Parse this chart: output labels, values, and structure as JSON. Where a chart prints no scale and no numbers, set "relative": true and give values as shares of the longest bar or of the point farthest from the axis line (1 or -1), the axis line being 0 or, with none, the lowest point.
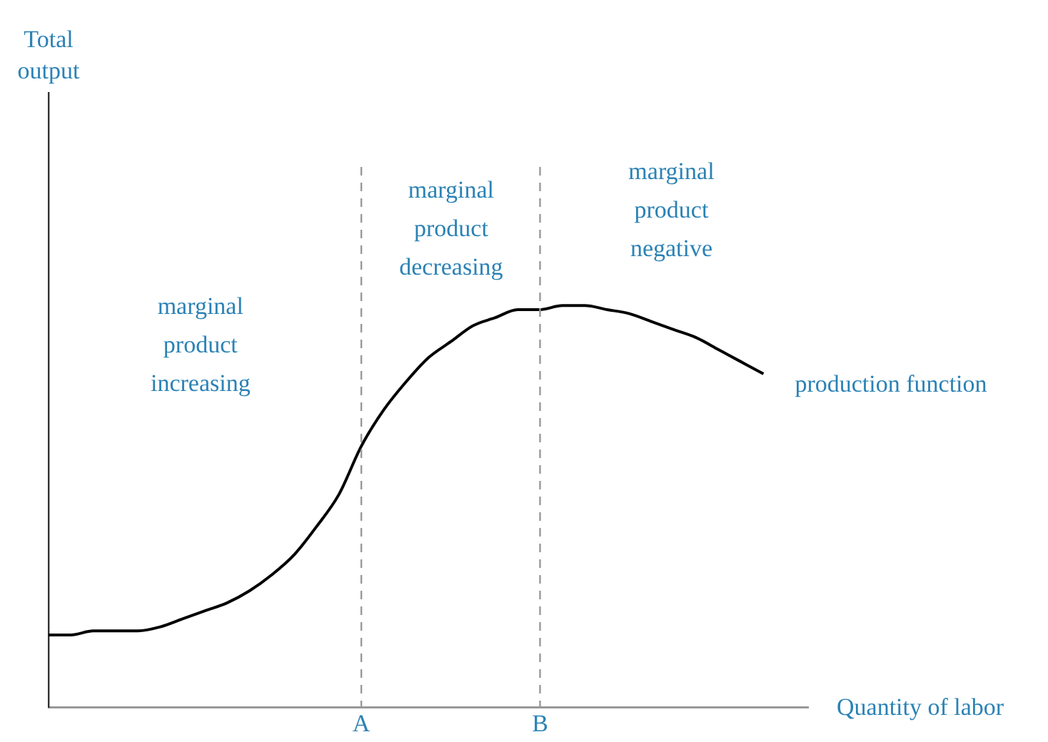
{
  "chart_data": {
    "type": "line",
    "relative": true,
    "xlabel": "Quantity of labor",
    "categories": [
      null,
      null,
      null,
      null,
      null,
      null,
      null,
      null,
      null,
      null,
      null,
      null,
      null,
      null,
      "A",
      null,
      null,
      null,
      null,
      null,
      null,
      null,
      "B",
      null,
      null,
      null,
      null,
      null,
      null,
      null,
      null,
      null,
      null,
      null,
      null
    ],
    "series": [
      {
        "name": "production function",
        "color": "#000000",
        "values": [
          0.18,
          0.18,
          0.19,
          0.19,
          0.19,
          0.2,
          0.22,
          0.24,
          0.26,
          0.29,
          0.33,
          0.38,
          0.45,
          0.53,
          0.65,
          0.74,
          0.81,
          0.87,
          0.91,
          0.95,
          0.97,
          0.99,
          0.99,
          1,
          1,
          0.99,
          0.98,
          0.96,
          0.94,
          0.92,
          0.89,
          0.86,
          0.83,
          null,
          null
        ]
      }
    ],
    "ref_lines": [
      {
        "axis": "x",
        "value": "A",
        "color": "#999999",
        "line_style": "dashed"
      },
      {
        "axis": "x",
        "value": "B",
        "color": "#999999",
        "line_style": "dashed"
      }
    ],
    "annotations": [
      "Total output",
      "marginal product increasing",
      "marginal product decreasing",
      "marginal product negative"
    ],
    "grid": false,
    "legend": false,
    "marker": "none",
    "line_style": "solid"
  }
}
